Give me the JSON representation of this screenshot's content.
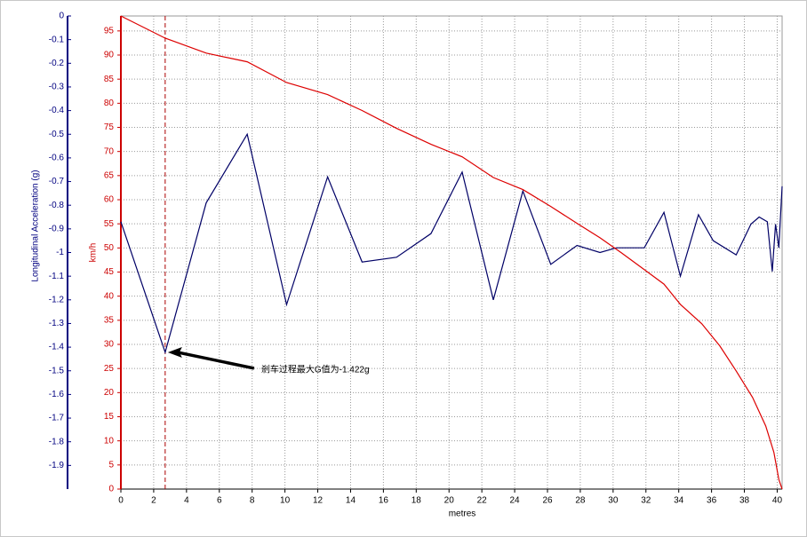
{
  "chart_data": {
    "type": "line",
    "ylabel": "Longitudinal Acceleration (g)",
    "y2label": "km/h",
    "xlabel": "metres",
    "xlim": [
      0,
      40.3
    ],
    "xticks": [
      0,
      2,
      4,
      6,
      8,
      10,
      12,
      14,
      16,
      18,
      20,
      22,
      24,
      26,
      28,
      30,
      32,
      34,
      36,
      38,
      40
    ],
    "ylim": [
      -2,
      0
    ],
    "yticks": [
      0,
      -0.1,
      -0.2,
      -0.3,
      -0.4,
      -0.5,
      -0.6,
      -0.7,
      -0.8,
      -0.9,
      -1,
      -1.1,
      -1.2,
      -1.3,
      -1.4,
      -1.5,
      -1.6,
      -1.7,
      -1.8,
      -1.9
    ],
    "y2lim": [
      0,
      98.1
    ],
    "y2ticks": [
      0,
      5,
      10,
      15,
      20,
      25,
      30,
      35,
      40,
      45,
      50,
      55,
      60,
      65,
      70,
      75,
      80,
      85,
      90,
      95
    ],
    "grid": true,
    "ycolor": "#000080",
    "y2color": "#cc0000",
    "series": [
      {
        "color": "#000066",
        "x": [
          0,
          2.7,
          5.2,
          7.7,
          10.1,
          12.6,
          14.7,
          16.8,
          18.9,
          20.8,
          22.7,
          24.5,
          26.2,
          27.8,
          29.2,
          30.2,
          31.9,
          33.1,
          34.1,
          35.2,
          36.1,
          37.5,
          38.4,
          38.9,
          39.4,
          39.7,
          39.9,
          40.1,
          40.3
        ],
        "values": [
          -0.87,
          -1.422,
          -0.79,
          -0.5,
          -1.22,
          -0.68,
          -1.04,
          -1.02,
          -0.92,
          -0.66,
          -1.2,
          -0.74,
          -1.05,
          -0.97,
          -1.0,
          -0.98,
          -0.98,
          -0.83,
          -1.1,
          -0.84,
          -0.95,
          -1.01,
          -0.88,
          -0.85,
          -0.87,
          -1.08,
          -0.88,
          -0.98,
          -0.72
        ]
      },
      {
        "color": "#dd0000",
        "axis": "y2",
        "x": [
          0,
          2.7,
          5.2,
          7.7,
          10.1,
          12.6,
          14.7,
          16.8,
          18.9,
          20.8,
          22.7,
          24.5,
          26.2,
          27.8,
          29.2,
          30.5,
          31.9,
          33.1,
          34.1,
          35.4,
          36.5,
          37.5,
          38.5,
          39.3,
          39.8,
          40.1,
          40.3
        ],
        "values": [
          98.1,
          93.5,
          90.4,
          88.6,
          84.3,
          81.8,
          78.5,
          74.8,
          71.5,
          68.9,
          64.6,
          62.1,
          58.6,
          55.1,
          52.1,
          49.0,
          45.5,
          42.5,
          38.3,
          34.3,
          29.7,
          24.5,
          19.0,
          13.1,
          7.6,
          2.0,
          0
        ]
      }
    ],
    "vline": {
      "x": 2.7,
      "color": "#aa0000"
    },
    "annotation": {
      "text": "剎车过程最大G值为-1.422g",
      "x": 2.7,
      "y": -1.422
    }
  }
}
